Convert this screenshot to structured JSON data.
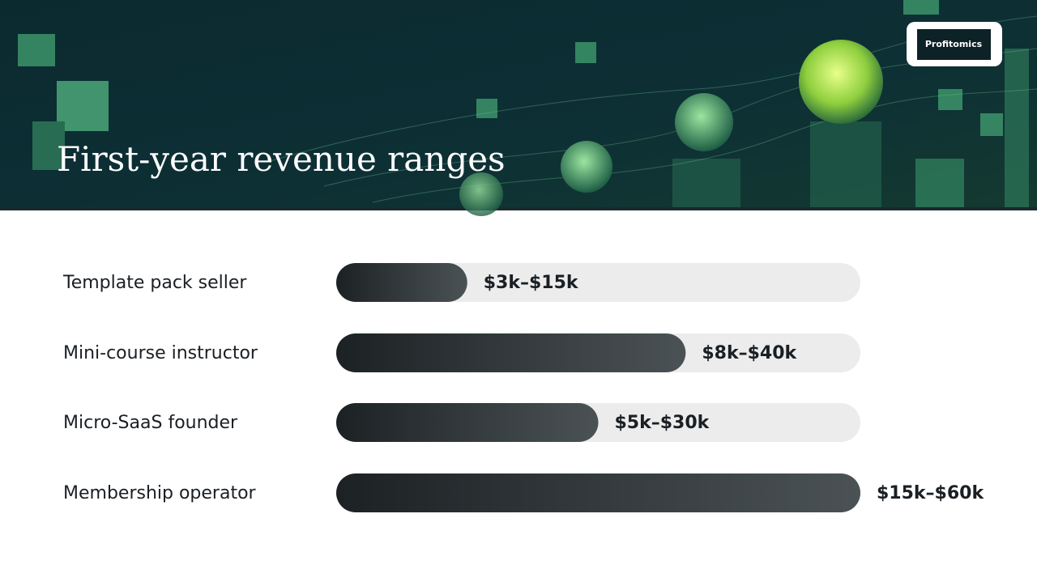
{
  "logo": "Profitomics",
  "chart_data": {
    "type": "bar",
    "orientation": "horizontal",
    "title": "First-year revenue ranges",
    "categories": [
      "Template pack seller",
      "Mini-course instructor",
      "Micro-SaaS founder",
      "Membership operator"
    ],
    "values": [
      15,
      40,
      30,
      60
    ],
    "value_labels": [
      "$3k–$15k",
      "$8k–$40k",
      "$5k–$30k",
      "$15k–$60k"
    ],
    "xlim": [
      0,
      60
    ],
    "color": "#1c2224"
  }
}
